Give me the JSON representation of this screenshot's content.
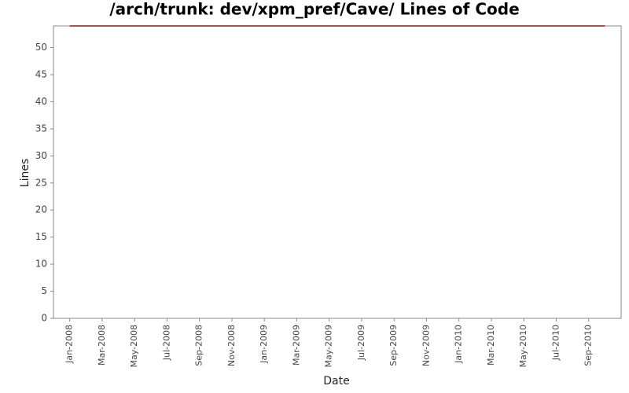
{
  "chart_data": {
    "type": "line",
    "title": "/arch/trunk: dev/xpm_pref/Cave/ Lines of Code",
    "x_label": "Date",
    "y_label": "Lines",
    "x": [
      "2008-01",
      "2010-10"
    ],
    "series": [
      {
        "color": "#8b1a1a",
        "values": [
          54,
          54
        ]
      }
    ],
    "xlim": [
      "2007-12",
      "2010-11"
    ],
    "xticks": [
      {
        "value": "2008-01",
        "label": "Jan-2008"
      },
      {
        "value": "2008-03",
        "label": "Mar-2008"
      },
      {
        "value": "2008-05",
        "label": "May-2008"
      },
      {
        "value": "2008-07",
        "label": "Jul-2008"
      },
      {
        "value": "2008-09",
        "label": "Sep-2008"
      },
      {
        "value": "2008-11",
        "label": "Nov-2008"
      },
      {
        "value": "2009-01",
        "label": "Jan-2009"
      },
      {
        "value": "2009-03",
        "label": "Mar-2009"
      },
      {
        "value": "2009-05",
        "label": "May-2009"
      },
      {
        "value": "2009-07",
        "label": "Jul-2009"
      },
      {
        "value": "2009-09",
        "label": "Sep-2009"
      },
      {
        "value": "2009-11",
        "label": "Nov-2009"
      },
      {
        "value": "2010-01",
        "label": "Jan-2010"
      },
      {
        "value": "2010-03",
        "label": "Mar-2010"
      },
      {
        "value": "2010-05",
        "label": "May-2010"
      },
      {
        "value": "2010-07",
        "label": "Jul-2010"
      },
      {
        "value": "2010-09",
        "label": "Sep-2010"
      }
    ],
    "ylim": [
      0,
      54
    ],
    "yticks": [
      0,
      5,
      10,
      15,
      20,
      25,
      30,
      35,
      40,
      45,
      50
    ],
    "grid": false
  }
}
